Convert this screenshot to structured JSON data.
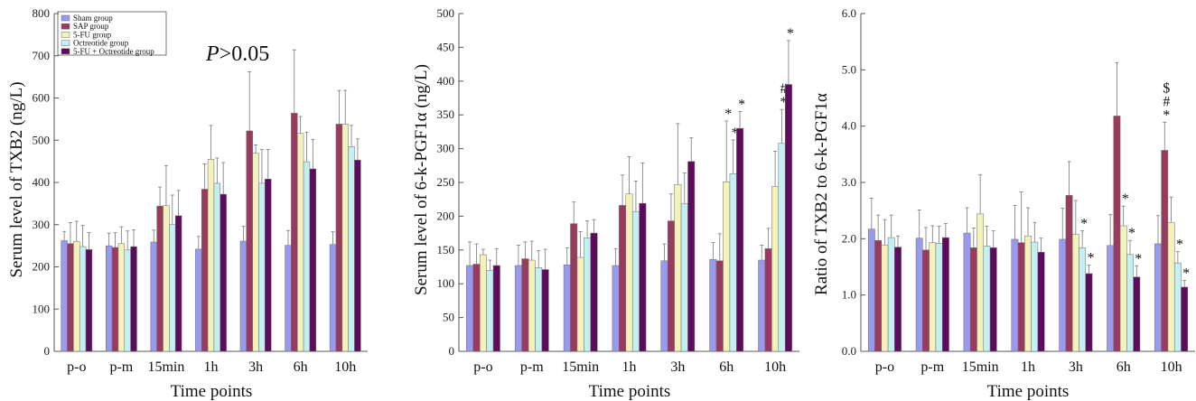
{
  "chart_data": [
    {
      "type": "bar",
      "xlabel": "Time points",
      "ylabel": "Serum level of TXB2 (ng/L)",
      "ylim": [
        0,
        800
      ],
      "yticks": [
        "0",
        "100",
        "200",
        "300",
        "400",
        "500",
        "600",
        "700",
        "800"
      ],
      "categories": [
        "p-o",
        "p-m",
        "15min",
        "1h",
        "3h",
        "6h",
        "10h"
      ],
      "legend": "top-left",
      "annotation": {
        "italic": "P",
        "rest": ">0.05"
      },
      "series": [
        {
          "name": "Sham group",
          "color": "#9999ee",
          "values": [
            262,
            250,
            259,
            242,
            261,
            251,
            253
          ],
          "errors": [
            22,
            30,
            28,
            30,
            35,
            35,
            30
          ]
        },
        {
          "name": "SAP group",
          "color": "#9b3a5f",
          "values": [
            255,
            246,
            344,
            384,
            522,
            564,
            538
          ],
          "errors": [
            50,
            35,
            45,
            60,
            140,
            150,
            80
          ]
        },
        {
          "name": "5-FU group",
          "color": "#f4f2bb",
          "values": [
            260,
            255,
            345,
            455,
            469,
            516,
            538
          ],
          "errors": [
            48,
            40,
            95,
            80,
            20,
            40,
            80
          ]
        },
        {
          "name": "Octreotide group",
          "color": "#c4f0f4",
          "values": [
            248,
            240,
            300,
            398,
            398,
            449,
            485
          ],
          "errors": [
            50,
            45,
            70,
            60,
            80,
            70,
            50
          ]
        },
        {
          "name": "5-FU + Octreotide group",
          "color": "#5e0b5e",
          "values": [
            241,
            248,
            321,
            372,
            408,
            432,
            453
          ],
          "errors": [
            40,
            40,
            60,
            75,
            70,
            70,
            50
          ]
        }
      ],
      "markers": [
        [
          [],
          [],
          [],
          [],
          []
        ],
        [
          [],
          [],
          [],
          [],
          []
        ],
        [
          [],
          [],
          [],
          [],
          []
        ],
        [
          [],
          [],
          [],
          [],
          []
        ],
        [
          [],
          [],
          [],
          [],
          []
        ],
        [
          [],
          [],
          [],
          [],
          []
        ],
        [
          [],
          [],
          [],
          [],
          []
        ]
      ]
    },
    {
      "type": "bar",
      "xlabel": "Time points",
      "ylabel": "Serum level of 6-k-PGF1α  (ng/L)",
      "ylim": [
        0,
        500
      ],
      "yticks": [
        "0",
        "50",
        "100",
        "150",
        "200",
        "250",
        "300",
        "350",
        "400",
        "450",
        "500"
      ],
      "categories": [
        "p-o",
        "p-m",
        "15min",
        "1h",
        "3h",
        "6h",
        "10h"
      ],
      "series": [
        {
          "name": "Sham group",
          "color": "#9999ee",
          "values": [
            127,
            127,
            128,
            127,
            134,
            136,
            135
          ],
          "errors": [
            35,
            30,
            25,
            25,
            25,
            25,
            22
          ]
        },
        {
          "name": "SAP group",
          "color": "#9b3a5f",
          "values": [
            129,
            137,
            189,
            216,
            193,
            134,
            152
          ],
          "errors": [
            30,
            25,
            32,
            45,
            40,
            40,
            30
          ]
        },
        {
          "name": "5-FU group",
          "color": "#f4f2bb",
          "values": [
            143,
            135,
            139,
            233,
            247,
            251,
            244
          ],
          "errors": [
            8,
            28,
            38,
            55,
            90,
            90,
            52
          ]
        },
        {
          "name": "Octreotide group",
          "color": "#c4f0f4",
          "values": [
            120,
            124,
            168,
            207,
            219,
            263,
            308
          ],
          "errors": [
            15,
            25,
            25,
            45,
            45,
            50,
            50
          ]
        },
        {
          "name": "5-FU + Octreotide group",
          "color": "#5e0b5e",
          "values": [
            127,
            121,
            175,
            219,
            281,
            330,
            395
          ],
          "errors": [
            25,
            30,
            20,
            60,
            35,
            25,
            65
          ]
        }
      ],
      "markers": [
        [
          [],
          [],
          [],
          [],
          []
        ],
        [
          [],
          [],
          [],
          [],
          []
        ],
        [
          [],
          [],
          [],
          [],
          []
        ],
        [
          [],
          [],
          [],
          [],
          []
        ],
        [
          [],
          [],
          [],
          [],
          []
        ],
        [
          [],
          [],
          [
            "*"
          ],
          [
            "*"
          ],
          [
            "*"
          ]
        ],
        [
          [],
          [],
          [],
          [
            "#",
            "*"
          ],
          [
            "*"
          ]
        ]
      ]
    },
    {
      "type": "bar",
      "xlabel": "Time points",
      "ylabel": "Ratio of TXB2 to 6-k-PGF1α",
      "ylim": [
        0,
        6
      ],
      "yticks": [
        "0.0",
        "1.0",
        "2.0",
        "3.0",
        "4.0",
        "5.0",
        "6.0"
      ],
      "categories": [
        "p-o",
        "p-m",
        "15min",
        "1h",
        "3h",
        "6h",
        "10h"
      ],
      "series": [
        {
          "name": "Sham group",
          "color": "#9999ee",
          "values": [
            2.17,
            2.01,
            2.1,
            1.99,
            1.99,
            1.88,
            1.91
          ],
          "errors": [
            0.55,
            0.5,
            0.45,
            0.6,
            0.55,
            0.55,
            0.5
          ]
        },
        {
          "name": "SAP group",
          "color": "#9b3a5f",
          "values": [
            1.97,
            1.8,
            1.84,
            1.93,
            2.77,
            4.18,
            3.57
          ],
          "errors": [
            0.45,
            0.4,
            0.35,
            0.9,
            0.6,
            0.95,
            0.5
          ]
        },
        {
          "name": "5-FU group",
          "color": "#f4f2bb",
          "values": [
            1.89,
            1.93,
            2.44,
            2.05,
            2.08,
            2.23,
            2.29
          ],
          "errors": [
            0.45,
            0.3,
            0.7,
            0.5,
            0.6,
            0.35,
            0.45
          ]
        },
        {
          "name": "Octreotide group",
          "color": "#c4f0f4",
          "values": [
            2.02,
            1.92,
            1.87,
            1.94,
            1.84,
            1.72,
            1.57
          ],
          "errors": [
            0.4,
            0.3,
            0.35,
            0.35,
            0.3,
            0.25,
            0.2
          ]
        },
        {
          "name": "5-FU + Octreotide group",
          "color": "#5e0b5e",
          "values": [
            1.85,
            2.02,
            1.84,
            1.76,
            1.38,
            1.32,
            1.14
          ],
          "errors": [
            0.2,
            0.25,
            0.3,
            0.25,
            0.15,
            0.2,
            0.12
          ]
        }
      ],
      "markers": [
        [
          [],
          [],
          [],
          [],
          []
        ],
        [
          [],
          [],
          [],
          [],
          []
        ],
        [
          [],
          [],
          [],
          [],
          []
        ],
        [
          [],
          [],
          [],
          [],
          []
        ],
        [
          [],
          [],
          [],
          [
            "*"
          ],
          [
            "*"
          ]
        ],
        [
          [],
          [],
          [
            "*"
          ],
          [
            "*"
          ],
          [
            "*"
          ]
        ],
        [
          [],
          [
            "$",
            "#",
            "*"
          ],
          [],
          [
            "*"
          ],
          [
            "*"
          ]
        ]
      ]
    }
  ]
}
